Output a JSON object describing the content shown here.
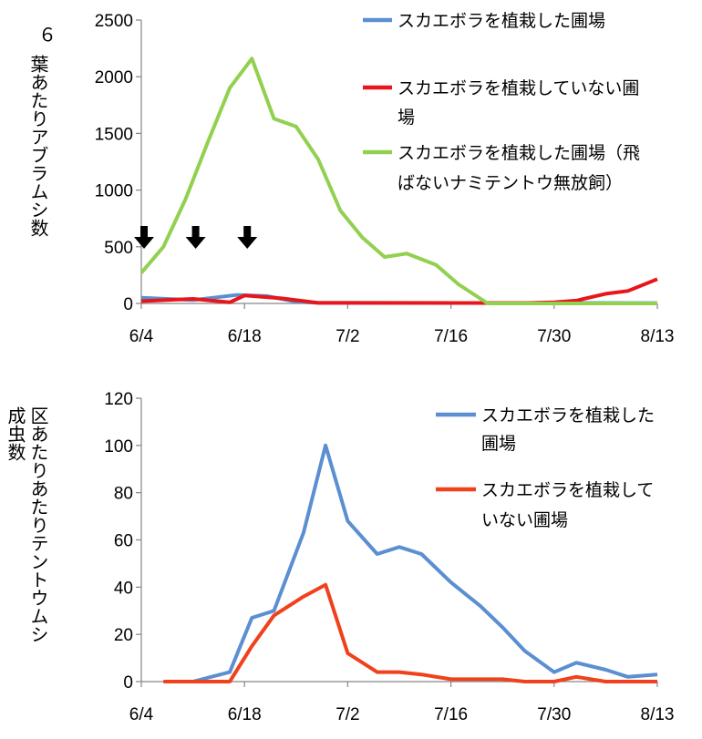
{
  "chart_data": [
    {
      "type": "line",
      "title": "",
      "ylabel_lines": [
        "６",
        "葉あたりアブラムシ数"
      ],
      "ylim": [
        0,
        2500
      ],
      "yticks": [
        "0",
        "500",
        "1000",
        "1500",
        "2000",
        "2500"
      ],
      "x_range": [
        "6/4",
        "8/13"
      ],
      "x_ticks": [
        "6/4",
        "6/18",
        "7/2",
        "7/16",
        "7/30",
        "8/13"
      ],
      "release_dates": [
        "6/4",
        "6/11",
        "6/18"
      ],
      "series": [
        {
          "name": "スカエボラを植栽した圃場",
          "legend_lines": [
            "スカエボラを植栽した圃場"
          ],
          "color": "#5b8fd1",
          "points": [
            [
              "6/4",
              50
            ],
            [
              "6/11",
              30
            ],
            [
              "6/17",
              75
            ],
            [
              "6/21",
              65
            ],
            [
              "6/25",
              15
            ],
            [
              "6/28",
              5
            ],
            [
              "8/13",
              3
            ]
          ]
        },
        {
          "name": "スカエボラを植栽していない圃場",
          "legend_lines": [
            "スカエボラを植栽していない圃",
            "場"
          ],
          "color": "#e8151b",
          "points": [
            [
              "6/4",
              20
            ],
            [
              "6/11",
              40
            ],
            [
              "6/16",
              10
            ],
            [
              "6/18",
              70
            ],
            [
              "6/23",
              45
            ],
            [
              "6/28",
              5
            ],
            [
              "7/26",
              3
            ],
            [
              "7/30",
              10
            ],
            [
              "8/2",
              25
            ],
            [
              "8/6",
              85
            ],
            [
              "8/9",
              110
            ],
            [
              "8/13",
              215
            ]
          ]
        },
        {
          "name": "スカエボラを植栽した圃場（飛ばないナミテントウ無放飼）",
          "legend_lines": [
            "スカエボラを植栽した圃場（飛",
            "ばないナミテントウ無放飼）"
          ],
          "color": "#92d050",
          "points": [
            [
              "6/4",
              270
            ],
            [
              "6/7",
              500
            ],
            [
              "6/10",
              920
            ],
            [
              "6/13",
              1420
            ],
            [
              "6/16",
              1900
            ],
            [
              "6/19",
              2160
            ],
            [
              "6/22",
              1630
            ],
            [
              "6/25",
              1560
            ],
            [
              "6/28",
              1270
            ],
            [
              "7/1",
              820
            ],
            [
              "7/4",
              580
            ],
            [
              "7/7",
              410
            ],
            [
              "7/10",
              440
            ],
            [
              "7/14",
              340
            ],
            [
              "7/17",
              170
            ],
            [
              "7/21",
              0
            ],
            [
              "8/13",
              0
            ]
          ]
        }
      ]
    },
    {
      "type": "line",
      "title": "",
      "ylabel_lines": [
        "区あたりあたりテントウムシ",
        "成虫数"
      ],
      "ylim": [
        0,
        120
      ],
      "yticks": [
        "0",
        "20",
        "40",
        "60",
        "80",
        "100",
        "120"
      ],
      "x_range": [
        "6/4",
        "8/13"
      ],
      "x_ticks": [
        "6/4",
        "6/18",
        "7/2",
        "7/16",
        "7/30",
        "8/13"
      ],
      "series": [
        {
          "name": "スカエボラを植栽した圃場",
          "legend_lines": [
            "スカエボラを植栽した",
            "圃場"
          ],
          "color": "#5b8fd1",
          "points": [
            [
              "6/7",
              0
            ],
            [
              "6/11",
              0
            ],
            [
              "6/16",
              4
            ],
            [
              "6/19",
              27
            ],
            [
              "6/22",
              30
            ],
            [
              "6/26",
              63
            ],
            [
              "6/29",
              100
            ],
            [
              "7/2",
              68
            ],
            [
              "7/6",
              54
            ],
            [
              "7/9",
              57
            ],
            [
              "7/12",
              54
            ],
            [
              "7/16",
              42
            ],
            [
              "7/20",
              32
            ],
            [
              "7/23",
              23
            ],
            [
              "7/26",
              13
            ],
            [
              "7/30",
              4
            ],
            [
              "8/2",
              8
            ],
            [
              "8/6",
              5
            ],
            [
              "8/9",
              2
            ],
            [
              "8/13",
              3
            ]
          ]
        },
        {
          "name": "スカエボラを植栽していない圃場",
          "legend_lines": [
            "スカエボラを植栽して",
            "いない圃場"
          ],
          "color": "#f0411c",
          "points": [
            [
              "6/7",
              0
            ],
            [
              "6/11",
              0
            ],
            [
              "6/16",
              0
            ],
            [
              "6/19",
              15
            ],
            [
              "6/22",
              28
            ],
            [
              "6/26",
              36
            ],
            [
              "6/29",
              41
            ],
            [
              "7/2",
              12
            ],
            [
              "7/6",
              4
            ],
            [
              "7/9",
              4
            ],
            [
              "7/12",
              3
            ],
            [
              "7/16",
              1
            ],
            [
              "7/20",
              1
            ],
            [
              "7/23",
              1
            ],
            [
              "7/26",
              0
            ],
            [
              "7/30",
              0
            ],
            [
              "8/2",
              2
            ],
            [
              "8/6",
              0
            ],
            [
              "8/9",
              0
            ],
            [
              "8/13",
              0
            ]
          ]
        }
      ]
    }
  ]
}
